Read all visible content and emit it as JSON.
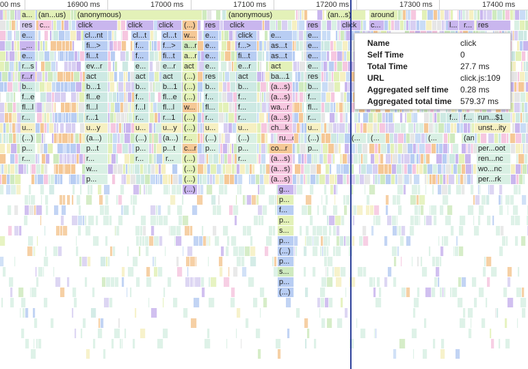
{
  "ruler": {
    "ticks": [
      {
        "label": "00 ms"
      },
      {
        "label": "16900 ms"
      },
      {
        "label": "17000 ms"
      },
      {
        "label": "17100 ms"
      },
      {
        "label": "17200 ms"
      },
      {
        "label": "17300 ms"
      },
      {
        "label": "17400 ms"
      }
    ]
  },
  "tooltip": {
    "rows": [
      {
        "key": "Name",
        "value": "click"
      },
      {
        "key": "Self Time",
        "value": "0"
      },
      {
        "key": "Total Time",
        "value": "27.7 ms"
      },
      {
        "key": "URL",
        "value": "click.js:109"
      },
      {
        "key": "Aggregated self time",
        "value": "0.28 ms"
      },
      {
        "key": "Aggregated total time",
        "value": "579.37 ms"
      }
    ]
  },
  "colors": {
    "pink": "#f6c7e0",
    "violet": "#c9b6ee",
    "lavender": "#d8cff2",
    "blue": "#b8cdf3",
    "lightblue": "#c9dcf6",
    "teal": "#cde9e3",
    "green": "#cfeabf",
    "lime": "#e3f1b8",
    "orange": "#f5c896",
    "yellow": "#f6f0c2",
    "mint": "#d9f0e4",
    "grey": "#e6e6e6",
    "cursor": "#2b3f9a"
  },
  "flame": {
    "rows": [
      [
        "a...",
        "(an...us)",
        "(anonymous)",
        "(anonymous)",
        "(an...s)",
        "around"
      ],
      [
        "res",
        "c...",
        "click",
        "click",
        "click",
        "(...)",
        "res",
        "click",
        "res",
        "click",
        "c...",
        "l...",
        "r...",
        "res"
      ],
      [
        "e...",
        "cl...nt",
        "cl...t",
        "cl...t",
        "w...",
        "e...",
        "click",
        "e...",
        "e..."
      ],
      [
        "_...",
        "fi...>",
        "f...",
        "f...>",
        "a...r",
        "e...",
        "f...>",
        "as...t",
        "e..."
      ],
      [
        "e...",
        "fi...t",
        "f...",
        "fi...t",
        "a...r",
        "e...",
        "fi...t",
        "as...t",
        "e..."
      ],
      [
        "r...s",
        "ev...r",
        "e...",
        "e...r",
        "act",
        "e...",
        "e...r",
        "act",
        "e..."
      ],
      [
        "r...r",
        "act",
        "act",
        "act",
        "(...)",
        "res",
        "act",
        "ba...1",
        "res"
      ],
      [
        "b...",
        "b...1",
        "b...",
        "b...1",
        "(...)",
        "b...",
        "b...",
        "(a...s)",
        "b..."
      ],
      [
        "f...e",
        "fl...e",
        "f...",
        "fl...e",
        "(...)",
        "f...",
        "f...",
        "(a...s)",
        "f..."
      ],
      [
        "fl...l",
        "fl...l",
        "f...l",
        "fl...l",
        "w...",
        "fl...",
        "f...",
        "wa...r",
        "fl..."
      ],
      [
        "r...",
        "r...1",
        "r...",
        "r...1",
        "(...)",
        "r...",
        "r...",
        "(a...s)",
        "r...",
        "f...",
        "f...",
        "run...$1"
      ],
      [
        "u...",
        "u...y",
        "u...",
        "u...y",
        "(...)",
        "u...",
        "u...",
        "ch...k",
        "u...",
        "unst...ity"
      ],
      [
        "(...)",
        "(a...)",
        "(...)",
        "(a...)",
        "r...",
        "(...)",
        "(...)",
        "ru...d",
        "(...)",
        "(...",
        "(...",
        "(...",
        "(an...us)"
      ],
      [
        "p...",
        "p...t",
        "p...",
        "p...t",
        "c...r",
        "p...",
        "p...",
        "co...r",
        "p...",
        "per...oot"
      ],
      [
        "r...",
        "r...",
        "r...",
        "r...",
        "(...)",
        "r...",
        "(a...s)",
        "ren...nc"
      ],
      [
        "w...",
        "(...)",
        "(a...s)",
        "wo...nc"
      ],
      [
        "p...",
        "(...)",
        "(a...s)",
        "per...rk"
      ],
      [
        "(...)",
        "g..."
      ],
      [
        "p..."
      ],
      [
        "f..."
      ],
      [
        "p..."
      ],
      [
        "s..."
      ],
      [
        "p..."
      ],
      [
        "(...)"
      ],
      [
        "p..."
      ],
      [
        "s..."
      ],
      [
        "p..."
      ],
      [
        "(...)"
      ]
    ]
  }
}
